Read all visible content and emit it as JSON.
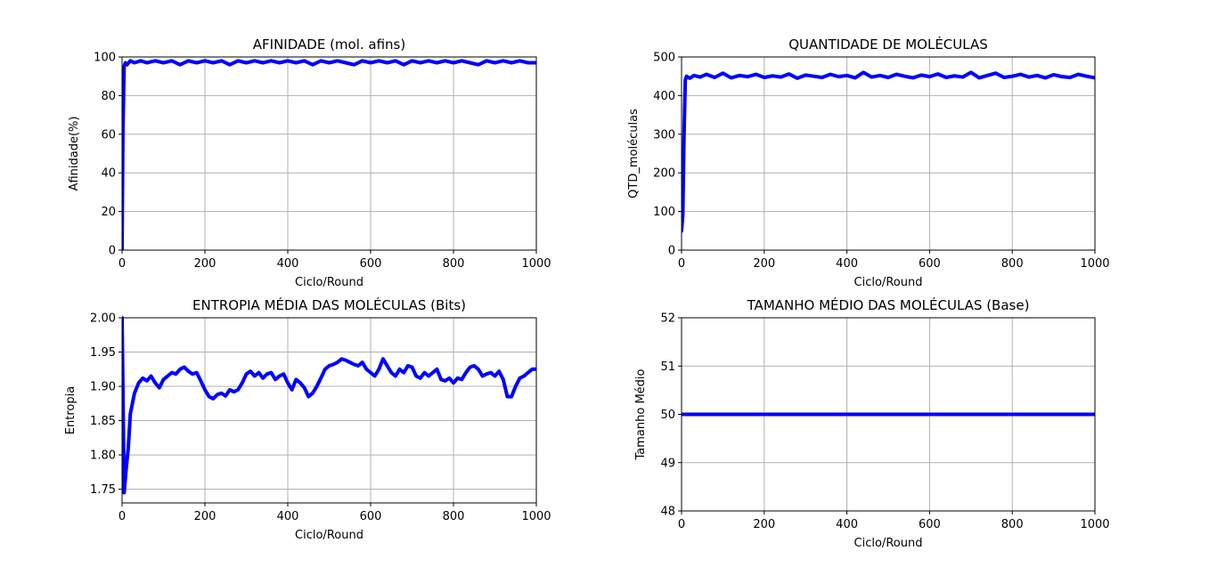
{
  "chart_data": [
    {
      "type": "line",
      "title": "AFINIDADE (mol. afins)",
      "xlabel": "Ciclo/Round",
      "ylabel": "Afinidade(%)",
      "xlim": [
        0,
        1000
      ],
      "ylim": [
        0,
        100
      ],
      "xticks": [
        "0",
        "200",
        "400",
        "600",
        "800",
        "1000"
      ],
      "yticks": [
        "0",
        "20",
        "40",
        "60",
        "80",
        "100"
      ],
      "grid": true,
      "color": "#0000ff",
      "series": [
        {
          "x": [
            0,
            2,
            5,
            8,
            12,
            20,
            30,
            45,
            60,
            80,
            100,
            120,
            140,
            160,
            180,
            200,
            220,
            240,
            260,
            280,
            300,
            320,
            340,
            360,
            380,
            400,
            420,
            440,
            460,
            480,
            500,
            520,
            540,
            560,
            580,
            600,
            620,
            640,
            660,
            680,
            700,
            720,
            740,
            760,
            780,
            800,
            820,
            840,
            860,
            880,
            900,
            920,
            940,
            960,
            980,
            1000
          ],
          "values": [
            0,
            60,
            95,
            97,
            96,
            98,
            97,
            98,
            97,
            98,
            97,
            98,
            96,
            98,
            97,
            98,
            97,
            98,
            96,
            98,
            97,
            98,
            97,
            98,
            97,
            98,
            97,
            98,
            96,
            98,
            97,
            98,
            97,
            96,
            98,
            97,
            98,
            97,
            98,
            96,
            98,
            97,
            98,
            97,
            98,
            97,
            98,
            97,
            96,
            98,
            97,
            98,
            97,
            98,
            97,
            97
          ]
        }
      ]
    },
    {
      "type": "line",
      "title": "QUANTIDADE DE MOLÉCULAS",
      "xlabel": "Ciclo/Round",
      "ylabel": "QTD_moléculas",
      "xlim": [
        0,
        1000
      ],
      "ylim": [
        0,
        500
      ],
      "xticks": [
        "0",
        "200",
        "400",
        "600",
        "800",
        "1000"
      ],
      "yticks": [
        "0",
        "100",
        "200",
        "300",
        "400",
        "500"
      ],
      "grid": true,
      "color": "#0000ff",
      "series": [
        {
          "x": [
            0,
            3,
            6,
            9,
            12,
            20,
            30,
            45,
            60,
            80,
            100,
            120,
            140,
            160,
            180,
            200,
            220,
            240,
            260,
            280,
            300,
            320,
            340,
            360,
            380,
            400,
            420,
            440,
            460,
            480,
            500,
            520,
            540,
            560,
            580,
            600,
            620,
            640,
            660,
            680,
            700,
            720,
            740,
            760,
            780,
            800,
            820,
            840,
            860,
            880,
            900,
            920,
            940,
            960,
            980,
            1000
          ],
          "values": [
            50,
            90,
            300,
            440,
            450,
            445,
            452,
            448,
            455,
            447,
            458,
            446,
            452,
            449,
            455,
            447,
            451,
            448,
            456,
            445,
            453,
            450,
            447,
            455,
            449,
            452,
            446,
            460,
            448,
            452,
            447,
            455,
            450,
            446,
            453,
            449,
            456,
            447,
            451,
            448,
            460,
            446,
            452,
            458,
            447,
            450,
            455,
            448,
            452,
            446,
            454,
            449,
            447,
            455,
            450,
            446
          ]
        }
      ]
    },
    {
      "type": "line",
      "title": "ENTROPIA MÉDIA DAS MOLÉCULAS (Bits)",
      "xlabel": "Ciclo/Round",
      "ylabel": "Entropia",
      "xlim": [
        0,
        1000
      ],
      "ylim": [
        1.73,
        2.0
      ],
      "xticks": [
        "0",
        "200",
        "400",
        "600",
        "800",
        "1000"
      ],
      "yticks": [
        "1.75",
        "1.80",
        "1.85",
        "1.90",
        "1.95",
        "2.00"
      ],
      "grid": true,
      "color": "#0000ff",
      "series": [
        {
          "x": [
            0,
            2,
            5,
            10,
            15,
            20,
            30,
            40,
            50,
            60,
            70,
            80,
            90,
            100,
            110,
            120,
            130,
            140,
            150,
            160,
            170,
            180,
            190,
            200,
            210,
            220,
            230,
            240,
            250,
            260,
            270,
            280,
            290,
            300,
            310,
            320,
            330,
            340,
            350,
            360,
            370,
            380,
            390,
            400,
            410,
            420,
            430,
            440,
            450,
            460,
            470,
            480,
            490,
            500,
            510,
            520,
            530,
            540,
            550,
            560,
            570,
            580,
            590,
            600,
            610,
            620,
            630,
            640,
            650,
            660,
            670,
            680,
            690,
            700,
            710,
            720,
            730,
            740,
            750,
            760,
            770,
            780,
            790,
            800,
            810,
            820,
            830,
            840,
            850,
            860,
            870,
            880,
            890,
            900,
            910,
            920,
            930,
            940,
            950,
            960,
            970,
            980,
            990,
            1000
          ],
          "values": [
            2.0,
            1.9,
            1.745,
            1.78,
            1.81,
            1.86,
            1.89,
            1.905,
            1.912,
            1.908,
            1.915,
            1.905,
            1.898,
            1.91,
            1.915,
            1.92,
            1.918,
            1.925,
            1.928,
            1.922,
            1.918,
            1.92,
            1.908,
            1.895,
            1.885,
            1.882,
            1.888,
            1.89,
            1.886,
            1.895,
            1.892,
            1.895,
            1.905,
            1.918,
            1.922,
            1.915,
            1.92,
            1.912,
            1.918,
            1.92,
            1.91,
            1.915,
            1.918,
            1.905,
            1.895,
            1.91,
            1.905,
            1.898,
            1.885,
            1.89,
            1.9,
            1.912,
            1.925,
            1.93,
            1.932,
            1.935,
            1.94,
            1.938,
            1.935,
            1.932,
            1.93,
            1.935,
            1.925,
            1.92,
            1.915,
            1.925,
            1.94,
            1.93,
            1.92,
            1.915,
            1.925,
            1.92,
            1.93,
            1.928,
            1.915,
            1.912,
            1.92,
            1.915,
            1.92,
            1.925,
            1.91,
            1.908,
            1.912,
            1.905,
            1.912,
            1.91,
            1.92,
            1.928,
            1.93,
            1.925,
            1.915,
            1.918,
            1.92,
            1.915,
            1.922,
            1.91,
            1.885,
            1.885,
            1.9,
            1.912,
            1.915,
            1.92,
            1.925,
            1.925
          ]
        }
      ]
    },
    {
      "type": "line",
      "title": "TAMANHO MÉDIO DAS MOLÉCULAS (Base)",
      "xlabel": "Ciclo/Round",
      "ylabel": "Tamanho Médio",
      "xlim": [
        0,
        1000
      ],
      "ylim": [
        48,
        52
      ],
      "xticks": [
        "0",
        "200",
        "400",
        "600",
        "800",
        "1000"
      ],
      "yticks": [
        "48",
        "49",
        "50",
        "51",
        "52"
      ],
      "grid": true,
      "color": "#0000ff",
      "series": [
        {
          "x": [
            0,
            1000
          ],
          "values": [
            50,
            50
          ]
        }
      ]
    }
  ]
}
